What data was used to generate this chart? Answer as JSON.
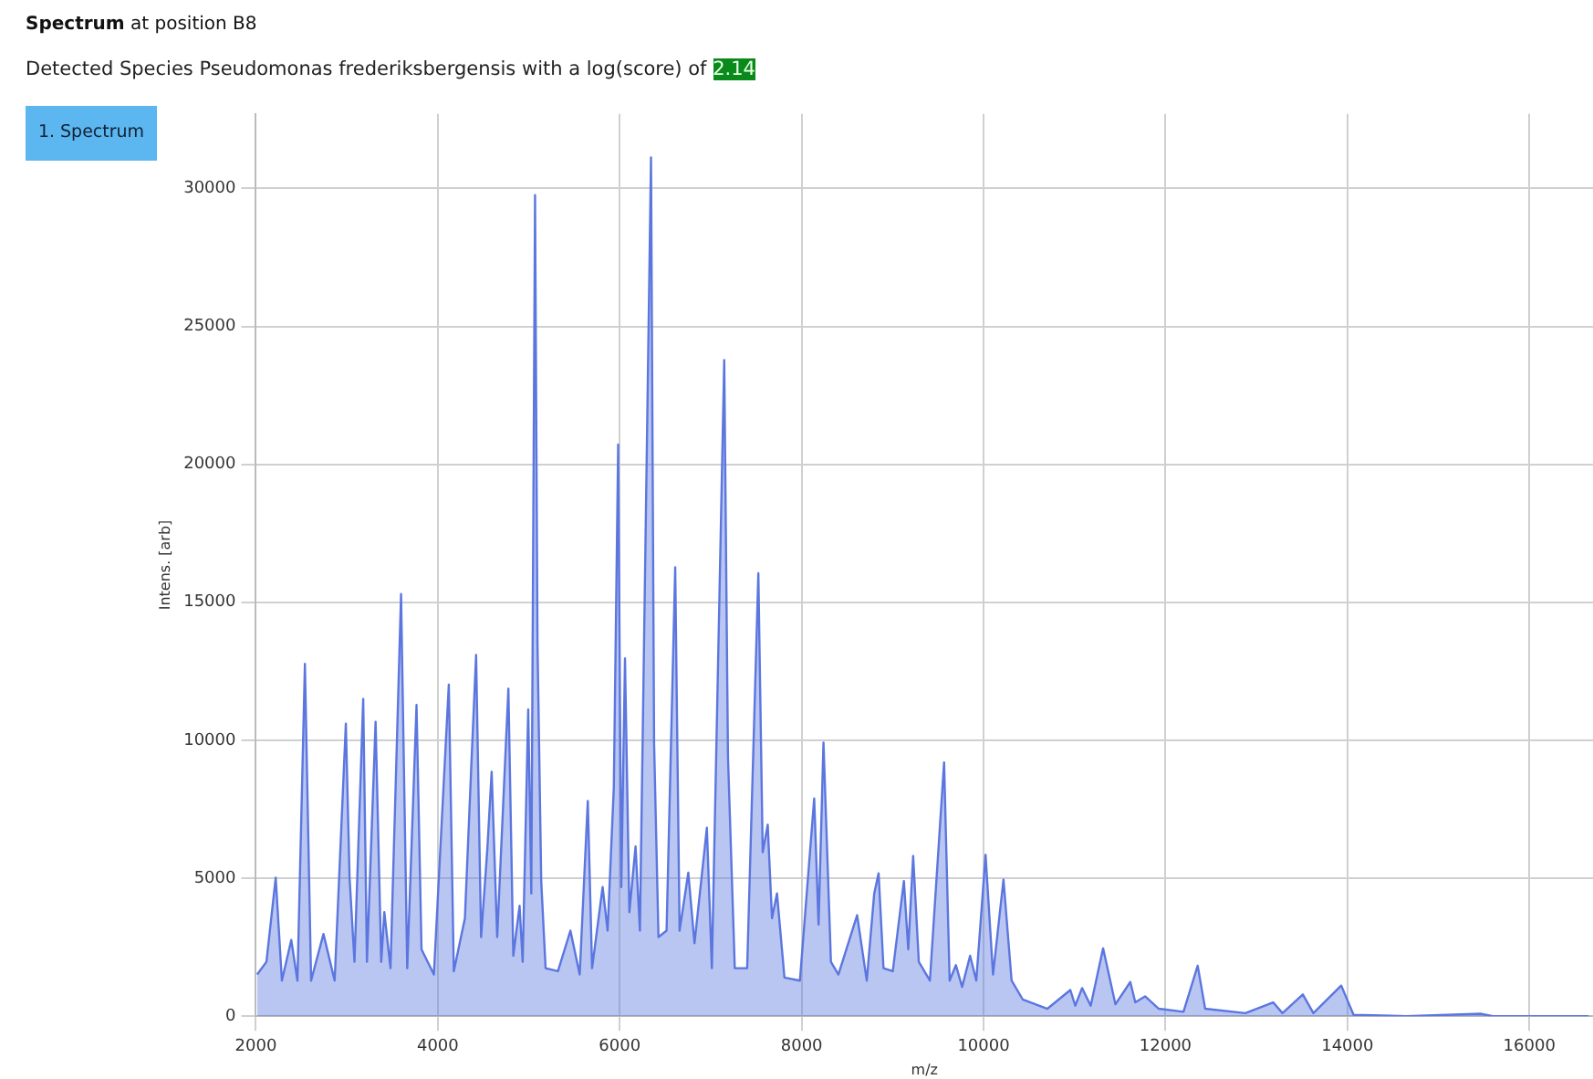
{
  "chart_data": {
    "type": "area",
    "title": "Spectrum at position B8",
    "subtitle": "Detected Species Pseudomonas frederiksbergensis with a log(score) of 2.14",
    "xlabel": "m/z",
    "ylabel": "Intens. [arb]",
    "annotations": [
      "1. Spectrum"
    ],
    "xlim": [
      2000,
      16700
    ],
    "xticks": [
      2000,
      4000,
      6000,
      8000,
      10000,
      12000,
      14000,
      16000
    ],
    "ylim": [
      0,
      32700
    ],
    "yticks": [
      0,
      5000,
      10000,
      15000,
      20000,
      25000,
      30000
    ],
    "grid": true,
    "legend": false,
    "series": [
      {
        "color": "#5b76df",
        "x": [
          2014,
          2116,
          2218,
          2286,
          2389,
          2457,
          2539,
          2607,
          2743,
          2866,
          2989,
          3030,
          3084,
          3180,
          3221,
          3316,
          3378,
          3412,
          3480,
          3596,
          3664,
          3766,
          3821,
          3957,
          4121,
          4176,
          4298,
          4367,
          4421,
          4476,
          4544,
          4592,
          4653,
          4776,
          4830,
          4899,
          4933,
          4994,
          5028,
          5069,
          5096,
          5137,
          5185,
          5321,
          5458,
          5560,
          5649,
          5696,
          5812,
          5867,
          5935,
          5983,
          6017,
          6058,
          6106,
          6174,
          6222,
          6344,
          6378,
          6426,
          6515,
          6610,
          6658,
          6754,
          6822,
          6958,
          7013,
          7149,
          7190,
          7265,
          7401,
          7524,
          7572,
          7627,
          7674,
          7729,
          7811,
          7981,
          8138,
          8186,
          8240,
          8322,
          8404,
          8610,
          8716,
          8798,
          8846,
          8900,
          9002,
          9124,
          9172,
          9226,
          9288,
          9410,
          9566,
          9627,
          9696,
          9764,
          9852,
          9920,
          10022,
          10104,
          10219,
          10308,
          10430,
          10702,
          10954,
          11008,
          11083,
          11178,
          11314,
          11450,
          11613,
          11668,
          11776,
          11926,
          12198,
          12354,
          12436,
          12878,
          13184,
          13286,
          13510,
          13626,
          13932,
          14068,
          14646,
          15462,
          15598,
          16652
        ],
        "values": [
          1510,
          1970,
          5020,
          1290,
          2760,
          1290,
          12770,
          1290,
          2980,
          1290,
          10600,
          5020,
          1970,
          11500,
          1970,
          10670,
          1970,
          3770,
          1740,
          15300,
          1740,
          11280,
          2420,
          1510,
          12020,
          1630,
          3550,
          8970,
          13090,
          2870,
          6030,
          8860,
          2870,
          11870,
          2190,
          4000,
          1970,
          11120,
          4450,
          29760,
          13490,
          4900,
          1740,
          1630,
          3100,
          1510,
          7800,
          1740,
          4680,
          3100,
          8290,
          20720,
          4680,
          12970,
          3770,
          6150,
          3100,
          31120,
          9880,
          2870,
          3100,
          16270,
          3100,
          5200,
          2640,
          6830,
          1740,
          23780,
          9420,
          1740,
          1740,
          16050,
          5940,
          6940,
          3550,
          4450,
          1400,
          1290,
          7890,
          3320,
          9920,
          1970,
          1510,
          3660,
          1290,
          4450,
          5180,
          1740,
          1630,
          4900,
          2420,
          5810,
          1970,
          1290,
          9200,
          1290,
          1850,
          1060,
          2190,
          1290,
          5850,
          1510,
          4950,
          1290,
          610,
          270,
          950,
          380,
          1020,
          380,
          2460,
          430,
          1240,
          500,
          720,
          270,
          160,
          1830,
          270,
          110,
          500,
          110,
          790,
          110,
          1110,
          50,
          0,
          90,
          0,
          0
        ]
      }
    ]
  }
}
